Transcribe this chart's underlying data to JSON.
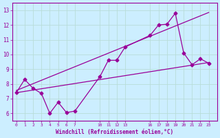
{
  "background_color": "#cceeff",
  "grid_color": "#aaddcc",
  "line_color": "#990099",
  "x_ticks_pos": [
    0,
    1,
    2,
    3,
    4,
    5,
    6,
    7,
    10,
    11,
    12,
    13,
    16,
    17,
    18,
    19,
    20,
    21,
    22,
    23
  ],
  "x_ticks_labels": [
    "0",
    "1",
    "2",
    "3",
    "4",
    "5",
    "6",
    "7",
    "10",
    "11",
    "12",
    "13",
    "16",
    "17",
    "18",
    "19",
    "20",
    "21",
    "22",
    "23"
  ],
  "series_main": {
    "x": [
      0,
      1,
      2,
      3,
      4,
      5,
      6,
      7,
      10,
      11,
      12,
      13,
      16,
      17,
      18,
      19,
      20,
      21,
      22,
      23
    ],
    "y": [
      7.4,
      8.3,
      7.7,
      7.35,
      6.0,
      6.75,
      6.05,
      6.15,
      8.5,
      9.6,
      9.6,
      10.5,
      11.3,
      12.0,
      12.05,
      12.8,
      10.1,
      9.3,
      9.7,
      9.4
    ]
  },
  "series_trend1": {
    "x": [
      0,
      23
    ],
    "y": [
      7.4,
      9.45
    ]
  },
  "series_trend2": {
    "x": [
      0,
      23
    ],
    "y": [
      7.55,
      12.85
    ]
  },
  "xlabel": "Windchill (Refroidissement éolien,°C)",
  "ylim": [
    5.5,
    13.5
  ],
  "xlim": [
    -0.5,
    24.0
  ],
  "yticks": [
    6,
    7,
    8,
    9,
    10,
    11,
    12,
    13
  ]
}
